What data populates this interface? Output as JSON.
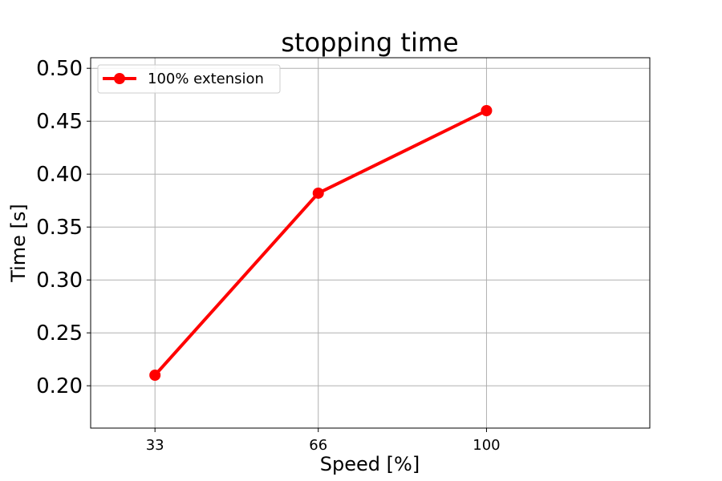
{
  "chart_data": {
    "type": "line",
    "title": "stopping time",
    "xlabel": "Speed [%]",
    "ylabel": "Time [s]",
    "categories": [
      "33",
      "66",
      "100"
    ],
    "x": [
      33,
      66,
      100
    ],
    "series": [
      {
        "name": "100% extension",
        "values": [
          0.21,
          0.382,
          0.46
        ],
        "color": "#ff0000"
      }
    ],
    "xlim": [
      20,
      133
    ],
    "ylim": [
      0.16,
      0.51
    ],
    "yticks": [
      "0.20",
      "0.25",
      "0.30",
      "0.35",
      "0.40",
      "0.45",
      "0.50"
    ],
    "grid": true,
    "legend_position": "upper-left"
  }
}
